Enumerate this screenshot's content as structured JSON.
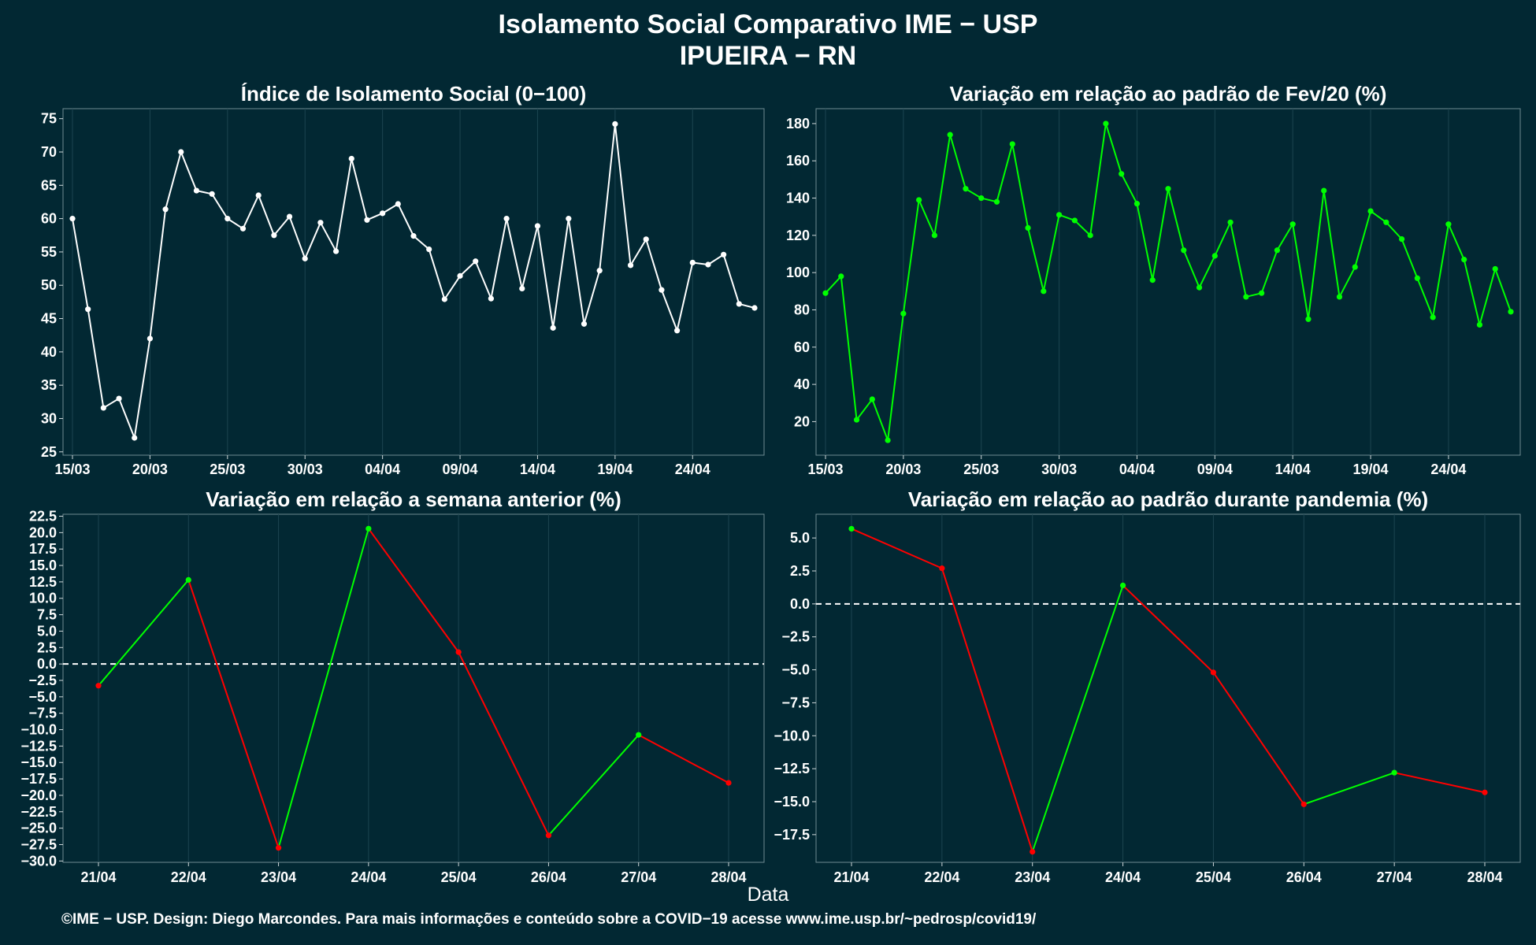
{
  "header": {
    "title": "Isolamento Social Comparativo IME − USP",
    "subtitle": "IPUEIRA − RN"
  },
  "x_label": "Data",
  "footer": "©IME − USP. Design: Diego Marcondes. Para mais informações e conteúdo sobre a COVID−19 acesse www.ime.usp.br/~pedrosp/covid19/",
  "colors": {
    "background": "#022833",
    "white_line": "#ffffff",
    "positive": "#00ff00",
    "negative": "#ff0000",
    "grid": "#1c4550"
  },
  "chart_data": [
    {
      "type": "line",
      "title": "Índice de Isolamento Social (0−100)",
      "xlabel": "",
      "ylabel": "",
      "x_start": "15/03",
      "x_tick_labels": [
        "15/03",
        "20/03",
        "25/03",
        "30/03",
        "04/04",
        "09/04",
        "14/04",
        "19/04",
        "24/04"
      ],
      "y_ticks": [
        "25",
        "30",
        "35",
        "40",
        "45",
        "50",
        "55",
        "60",
        "65",
        "70",
        "75"
      ],
      "ylim": [
        24.5,
        76.5
      ],
      "color": "#ffffff",
      "values": [
        60.0,
        46.4,
        31.6,
        33.0,
        27.1,
        42.0,
        61.4,
        70.0,
        64.2,
        63.7,
        60.0,
        58.5,
        63.5,
        57.5,
        60.3,
        54.0,
        59.4,
        55.1,
        69.0,
        59.8,
        60.8,
        62.2,
        57.4,
        55.4,
        47.9,
        51.4,
        53.6,
        48.0,
        60.0,
        49.5,
        58.9,
        43.6,
        60.0,
        44.2,
        52.2,
        74.2,
        53.0,
        56.9,
        49.3,
        43.2,
        53.4,
        53.1,
        54.6,
        47.2,
        46.6
      ]
    },
    {
      "type": "line",
      "title": "Variação em relação ao padrão de Fev/20 (%)",
      "xlabel": "",
      "ylabel": "",
      "x_start": "15/03",
      "x_tick_labels": [
        "15/03",
        "20/03",
        "25/03",
        "30/03",
        "04/04",
        "09/04",
        "14/04",
        "19/04",
        "24/04"
      ],
      "y_ticks": [
        "20",
        "40",
        "60",
        "80",
        "100",
        "120",
        "140",
        "160",
        "180"
      ],
      "ylim": [
        2,
        188
      ],
      "color": "#00ff00",
      "values": [
        89,
        98,
        21,
        32,
        10,
        78,
        139,
        120,
        174,
        145,
        140,
        138,
        169,
        124,
        90,
        131,
        128,
        120,
        180,
        153,
        137,
        96,
        145,
        112,
        92,
        109,
        127,
        87,
        89,
        112,
        126,
        75,
        144,
        87,
        103,
        133,
        127,
        118,
        97,
        76,
        126,
        107,
        72,
        102,
        79
      ]
    },
    {
      "type": "line",
      "title": "Variação em relação a semana anterior (%)",
      "xlabel": "",
      "ylabel": "",
      "categories": [
        "21/04",
        "22/04",
        "23/04",
        "24/04",
        "25/04",
        "26/04",
        "27/04",
        "28/04"
      ],
      "y_ticks": [
        "−30.0",
        "−27.5",
        "−25.0",
        "−22.5",
        "−20.0",
        "−17.5",
        "−15.0",
        "−12.5",
        "−10.0",
        "−7.5",
        "−5.0",
        "−2.5",
        "0.0",
        "2.5",
        "5.0",
        "7.5",
        "10.0",
        "12.5",
        "15.0",
        "17.5",
        "20.0",
        "22.5"
      ],
      "ylim": [
        -30.2,
        22.8
      ],
      "reference_line": 0,
      "up_color": "#00ff00",
      "down_color": "#ff0000",
      "values": [
        -3.3,
        12.8,
        -28.0,
        20.6,
        1.8,
        -26.1,
        -10.8,
        -18.1
      ]
    },
    {
      "type": "line",
      "title": "Variação em relação ao padrão durante pandemia (%)",
      "xlabel": "",
      "ylabel": "",
      "categories": [
        "21/04",
        "22/04",
        "23/04",
        "24/04",
        "25/04",
        "26/04",
        "27/04",
        "28/04"
      ],
      "y_ticks": [
        "−17.5",
        "−15.0",
        "−12.5",
        "−10.0",
        "−7.5",
        "−5.0",
        "−2.5",
        "0.0",
        "2.5",
        "5.0"
      ],
      "ylim": [
        -19.6,
        6.8
      ],
      "reference_line": 0,
      "up_color": "#00ff00",
      "down_color": "#ff0000",
      "values": [
        5.7,
        2.7,
        -18.8,
        1.4,
        -5.2,
        -15.2,
        -12.8,
        -14.3
      ]
    }
  ]
}
